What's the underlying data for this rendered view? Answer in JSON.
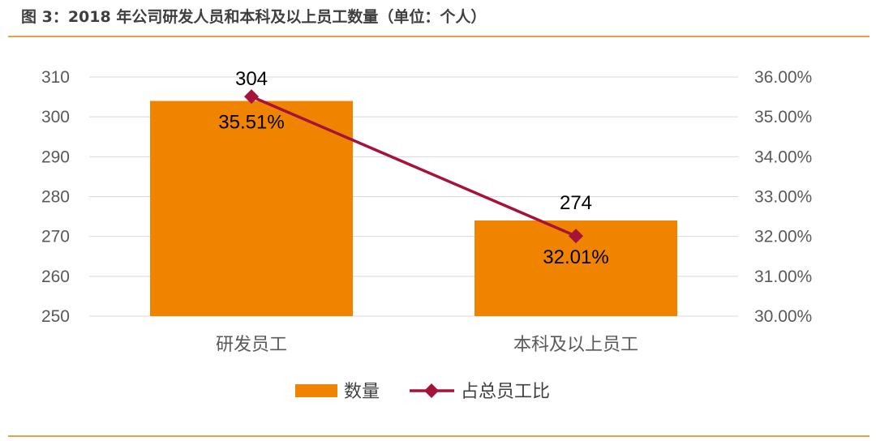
{
  "header": {
    "title": "图 3：2018 年公司研发人员和本科及以上员工数量（单位：个人）"
  },
  "colors": {
    "bar": "#f08300",
    "line": "#a5123a",
    "grid": "#d9d9d9",
    "rule": "#e8a04a"
  },
  "chart_data": {
    "type": "bar",
    "categories": [
      "研发员工",
      "本科及以上员工"
    ],
    "series": [
      {
        "name": "数量",
        "type": "bar",
        "axis": "left",
        "values": [
          304,
          274
        ],
        "labels": [
          "304",
          "274"
        ]
      },
      {
        "name": "占总员工比",
        "type": "line",
        "axis": "right",
        "values": [
          35.51,
          32.01
        ],
        "labels": [
          "35.51%",
          "32.01%"
        ]
      }
    ],
    "y_left": {
      "min": 250,
      "max": 310,
      "step": 10,
      "ticks": [
        "250",
        "260",
        "270",
        "280",
        "290",
        "300",
        "310"
      ]
    },
    "y_right": {
      "min": 30,
      "max": 36,
      "step": 1,
      "ticks": [
        "30.00%",
        "31.00%",
        "32.00%",
        "33.00%",
        "34.00%",
        "35.00%",
        "36.00%"
      ]
    },
    "grid": true,
    "legend": {
      "position": "bottom",
      "items": [
        "数量",
        "占总员工比"
      ]
    }
  }
}
